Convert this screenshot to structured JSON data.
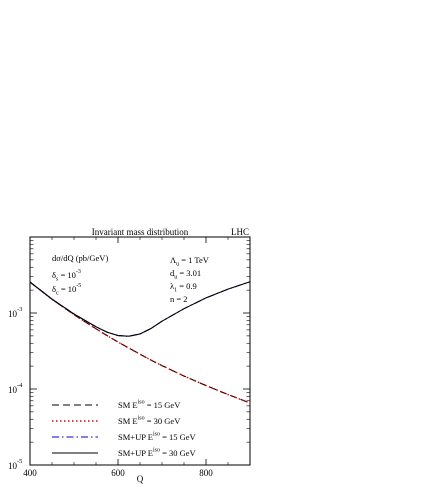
{
  "chart_data": {
    "type": "line",
    "title": "Invariant mass distribution",
    "title_right": "LHC",
    "xlabel": "Q",
    "ylabel": "dσ/dQ (pb/GeV)",
    "y_scale": "log",
    "xlim": [
      400,
      900
    ],
    "ylim": [
      1e-05,
      0.01
    ],
    "x_ticks": [
      {
        "value": 400,
        "label": "400"
      },
      {
        "value": 600,
        "label": "600"
      },
      {
        "value": 800,
        "label": "800"
      }
    ],
    "y_ticks": [
      {
        "value": 1e-05,
        "base": "10",
        "exp": "-5"
      },
      {
        "value": 0.0001,
        "base": "10",
        "exp": "-4"
      },
      {
        "value": 0.001,
        "base": "10",
        "exp": "-3"
      }
    ],
    "annotations_left": [
      {
        "base": "δ",
        "sub": "s",
        "rest": " = 10",
        "sup": "-3"
      },
      {
        "base": "δ",
        "sub": "c",
        "rest": " = 10",
        "sup": "-5"
      }
    ],
    "annotations_right": [
      {
        "base": "Λ",
        "sub": "u",
        "rest": " = 1 TeV"
      },
      {
        "base": "d",
        "sub": "u",
        "rest": " = 3.01"
      },
      {
        "base": "λ",
        "sub": "1",
        "rest": " = 0.9"
      },
      {
        "base": "n = 2",
        "sub": "",
        "rest": ""
      }
    ],
    "x": [
      400,
      450,
      500,
      550,
      575,
      600,
      625,
      650,
      675,
      700,
      750,
      800,
      850,
      900
    ],
    "series": [
      {
        "name": "SM E iso = 15 GeV",
        "legend": {
          "pre": "SM E",
          "sup": "iso",
          "post": " = 15 GeV"
        },
        "color": "#000000",
        "dash": "7,4",
        "values": [
          0.00255,
          0.00152,
          0.00095,
          0.00062,
          0.000505,
          0.000415,
          0.000345,
          0.000287,
          0.00024,
          0.000203,
          0.000148,
          0.000111,
          8.45e-05,
          6.55e-05
        ]
      },
      {
        "name": "SM E iso = 30 GeV",
        "legend": {
          "pre": "SM E",
          "sup": "iso",
          "post": " = 30 GeV"
        },
        "color": "#e00000",
        "dash": "1.5,2.5",
        "values": [
          0.00255,
          0.00152,
          0.00095,
          0.00062,
          0.000505,
          0.000415,
          0.000345,
          0.000287,
          0.00024,
          0.000203,
          0.000148,
          0.000111,
          8.45e-05,
          6.55e-05
        ]
      },
      {
        "name": "SM+UP E iso = 15 GeV",
        "legend": {
          "pre": "SM+UP E",
          "sup": "iso",
          "post": " = 15 GeV"
        },
        "color": "#0000d0",
        "dash": "7,3,1.5,3",
        "values": [
          0.00255,
          0.00152,
          0.00097,
          0.00066,
          0.00056,
          0.000505,
          0.000495,
          0.00053,
          0.000625,
          0.00078,
          0.00114,
          0.00158,
          0.00206,
          0.00258
        ]
      },
      {
        "name": "SM+UP E iso = 30 GeV",
        "legend": {
          "pre": "SM+UP E",
          "sup": "iso",
          "post": " = 30 GeV"
        },
        "color": "#000000",
        "dash": "",
        "values": [
          0.00255,
          0.00152,
          0.00097,
          0.00066,
          0.00056,
          0.000505,
          0.000495,
          0.00053,
          0.000625,
          0.00078,
          0.00114,
          0.00158,
          0.00206,
          0.00258
        ]
      }
    ],
    "grid": false,
    "legend_position": "bottom-left"
  }
}
